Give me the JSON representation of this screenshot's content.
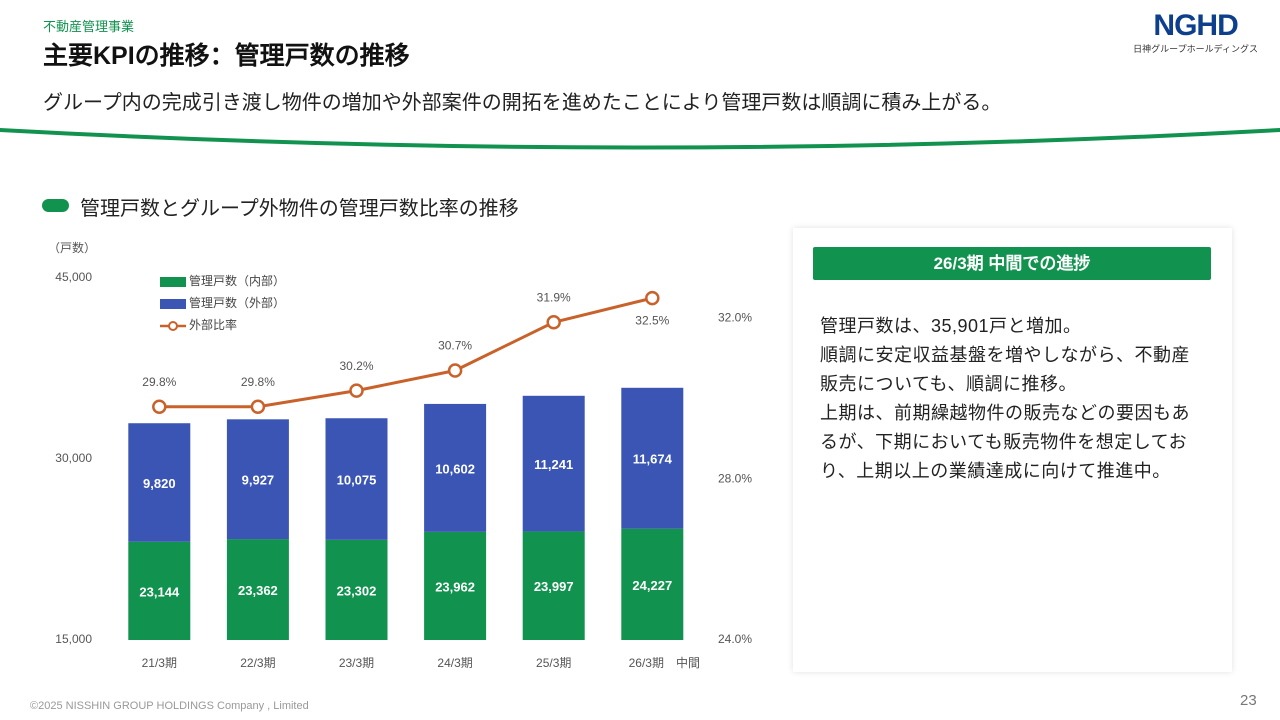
{
  "header": {
    "category": "不動産管理事業",
    "title": "主要KPIの推移：管理戸数の推移",
    "lead": "グループ内の完成引き渡し物件の増加や外部案件の開拓を進めたことにより管理戸数は順調に積み上がる。"
  },
  "logo": {
    "text": "NGHD",
    "subtitle": "日神グループホールディングス"
  },
  "chart_data": {
    "type": "bar",
    "stacked": true,
    "title": "管理戸数とグループ外物件の管理戸数比率の推移",
    "ylabel": "（戸数）",
    "categories": [
      "21/3期",
      "22/3期",
      "23/3期",
      "24/3期",
      "25/3期",
      "26/3期　中間"
    ],
    "series": [
      {
        "name": "管理戸数（内部）",
        "color": "#12924f",
        "values": [
          23144,
          23362,
          23302,
          23962,
          23997,
          24227
        ],
        "value_labels": [
          "23,144",
          "23,362",
          "23,302",
          "23,962",
          "23,997",
          "24,227"
        ]
      },
      {
        "name": "管理戸数（外部）",
        "color": "#3a55b4",
        "values": [
          9820,
          9927,
          10075,
          10602,
          11241,
          11674
        ],
        "value_labels": [
          "9,820",
          "9,927",
          "10,075",
          "10,602",
          "11,241",
          "11,674"
        ]
      },
      {
        "name": "外部比率",
        "type": "line",
        "axis": "y2",
        "color": "#c9622a",
        "values": [
          29.8,
          29.8,
          30.2,
          30.7,
          31.9,
          32.5
        ],
        "value_labels": [
          "29.8%",
          "29.8%",
          "30.2%",
          "30.7%",
          "31.9%",
          "32.5%"
        ]
      }
    ],
    "ylim": [
      15000,
      45000
    ],
    "yticks": [
      {
        "value": 15000,
        "label": "15,000"
      },
      {
        "value": 30000,
        "label": "30,000"
      },
      {
        "value": 45000,
        "label": "45,000"
      }
    ],
    "y2lim": [
      24,
      33
    ],
    "y2ticks": [
      {
        "value": 24,
        "label": "24.0%"
      },
      {
        "value": 28,
        "label": "28.0%"
      },
      {
        "value": 32,
        "label": "32.0%"
      }
    ],
    "grid": false,
    "legend": "top-left"
  },
  "panel": {
    "heading": "26/3期 中間での進捗",
    "paragraphs": [
      "管理戸数は、35,901戸と増加。",
      "順調に安定収益基盤を増やしながら、不動産販売についても、順調に推移。",
      "上期は、前期繰越物件の販売などの要因もあるが、下期においても販売物件を想定しており、上期以上の業績達成に向けて推進中。"
    ]
  },
  "footer": {
    "copyright": "©2025 NISSHIN GROUP HOLDINGS Company , Limited",
    "page": "23"
  }
}
